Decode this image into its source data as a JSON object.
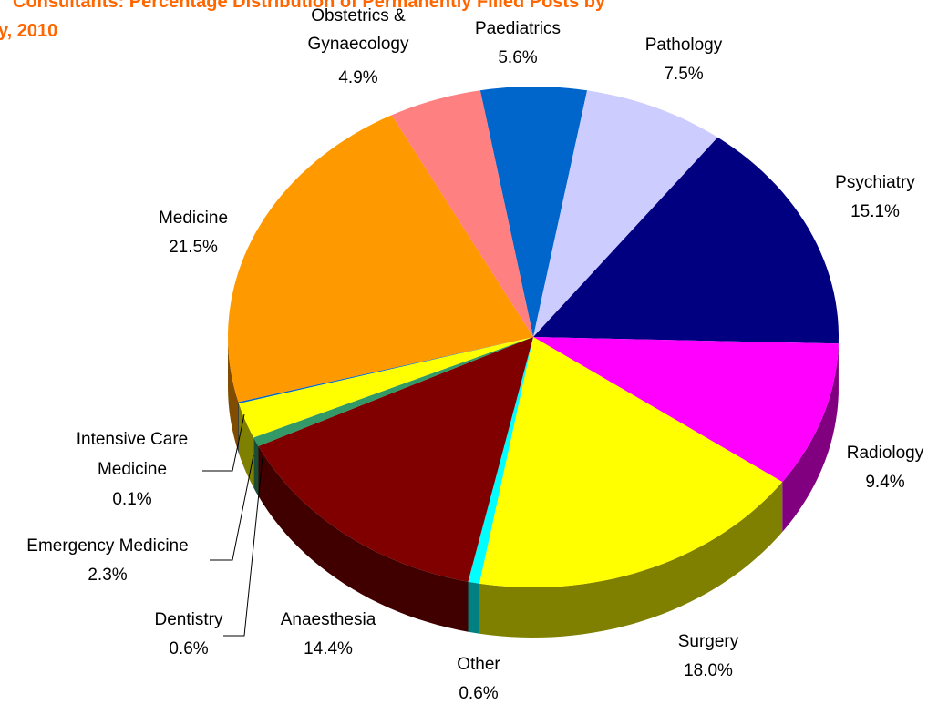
{
  "chart_data": {
    "type": "pie3d",
    "title": [
      "Consultants: Percentage Distribution of Permanently Filled Posts by",
      "y, 2010"
    ],
    "categories": [
      "Paediatrics",
      "Pathology",
      "Psychiatry",
      "Radiology",
      "Surgery",
      "Other",
      "Anaesthesia",
      "Dentistry",
      "Emergency Medicine",
      "Intensive Care Medicine",
      "Medicine",
      "Obstetrics & Gynaecology"
    ],
    "values": [
      5.6,
      7.5,
      15.1,
      9.4,
      18.0,
      0.6,
      14.4,
      0.6,
      2.3,
      0.1,
      21.5,
      4.9
    ],
    "value_labels": [
      "5.6%",
      "7.5%",
      "15.1%",
      "9.4%",
      "18.0%",
      "0.6%",
      "14.4%",
      "0.6%",
      "2.3%",
      "0.1%",
      "21.5%",
      "4.9%"
    ],
    "colors": [
      "#0066cc",
      "#ccccff",
      "#000080",
      "#ff00ff",
      "#ffff00",
      "#00ffff",
      "#800000",
      "#339966",
      "#ffff00",
      "#0066cc",
      "#ff9900",
      "#ff8080"
    ]
  }
}
